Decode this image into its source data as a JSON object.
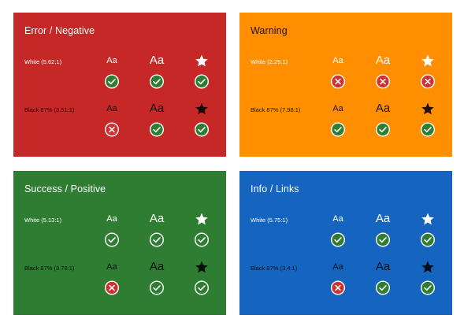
{
  "sample_small": "Aa",
  "sample_large": "Aa",
  "colors": {
    "pass_fill": "#2e7d32",
    "fail_fill": "#d32f2f",
    "outline": "#ffffff"
  },
  "cards": [
    {
      "id": "error",
      "title": "Error / Negative",
      "background": "#c62828",
      "title_color": "#ffffff",
      "rows": [
        {
          "label": "White (5.62:1)",
          "text_color": "#ffffff",
          "results": [
            "pass",
            "pass",
            "pass"
          ]
        },
        {
          "label": "Black 87% (3.51:1)",
          "text_color": "rgba(0,0,0,0.87)",
          "results": [
            "fail",
            "pass",
            "pass"
          ]
        }
      ]
    },
    {
      "id": "warning",
      "title": "Warning",
      "background": "#ff8f00",
      "title_color": "rgba(0,0,0,0.87)",
      "rows": [
        {
          "label": "White (2.29:1)",
          "text_color": "#ffffff",
          "results": [
            "fail",
            "fail",
            "fail"
          ]
        },
        {
          "label": "Black 87% (7.98:1)",
          "text_color": "rgba(0,0,0,0.87)",
          "results": [
            "pass",
            "pass",
            "pass"
          ]
        }
      ]
    },
    {
      "id": "success",
      "title": "Success / Positive",
      "background": "#2e7d32",
      "title_color": "#ffffff",
      "rows": [
        {
          "label": "White (5.13:1)",
          "text_color": "#ffffff",
          "results": [
            "pass",
            "pass",
            "pass"
          ]
        },
        {
          "label": "Black 87% (3.78:1)",
          "text_color": "rgba(0,0,0,0.87)",
          "results": [
            "fail",
            "pass",
            "pass"
          ]
        }
      ]
    },
    {
      "id": "info",
      "title": "Info / Links",
      "background": "#1565c0",
      "title_color": "#ffffff",
      "rows": [
        {
          "label": "White (5.75:1)",
          "text_color": "#ffffff",
          "results": [
            "pass",
            "pass",
            "pass"
          ]
        },
        {
          "label": "Black 87% (3.4:1)",
          "text_color": "rgba(0,0,0,0.87)",
          "results": [
            "fail",
            "pass",
            "pass"
          ]
        }
      ]
    }
  ]
}
